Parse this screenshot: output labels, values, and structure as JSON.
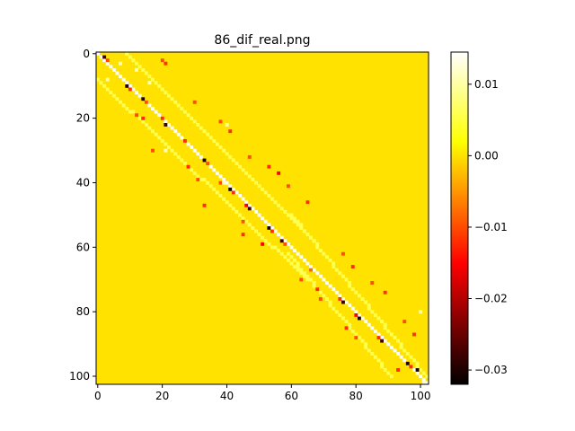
{
  "chart_data": {
    "type": "heatmap",
    "title": "86_dif_real.png",
    "xlabel": "",
    "ylabel": "",
    "size": 103,
    "xlim": [
      0,
      102
    ],
    "ylim": [
      102,
      0
    ],
    "x_ticks": [
      "0",
      "20",
      "40",
      "60",
      "80",
      "100"
    ],
    "y_ticks": [
      "0",
      "20",
      "40",
      "60",
      "80",
      "100"
    ],
    "colormap": "hot",
    "vmin": -0.032,
    "vmax": 0.0145,
    "background_value": 0.0,
    "colorbar_ticks": [
      {
        "value": 0.01,
        "label": "0.01"
      },
      {
        "value": 0.0,
        "label": "0.00"
      },
      {
        "value": -0.01,
        "label": "−0.01"
      },
      {
        "value": -0.02,
        "label": "−0.02"
      },
      {
        "value": -0.03,
        "label": "−0.03"
      }
    ],
    "bands": [
      {
        "name": "main-diagonal",
        "from": [
          0,
          0
        ],
        "to": [
          102,
          102
        ],
        "value": 0.0145
      },
      {
        "name": "upper-band-1",
        "from": [
          9,
          0
        ],
        "to": [
          67,
          58
        ],
        "value": 0.006
      },
      {
        "name": "upper-band-2",
        "from": [
          60,
          50
        ],
        "to": [
          102,
          100
        ],
        "value": 0.006
      },
      {
        "name": "lower-band-1",
        "from": [
          0,
          8
        ],
        "to": [
          65,
          70
        ],
        "value": 0.006
      },
      {
        "name": "lower-band-2",
        "from": [
          59,
          62
        ],
        "to": [
          91,
          100
        ],
        "value": 0.006
      }
    ],
    "cells": [
      [
        2,
        1,
        -0.028
      ],
      [
        3,
        2,
        -0.01
      ],
      [
        9,
        10,
        -0.03
      ],
      [
        10,
        11,
        -0.012
      ],
      [
        14,
        14,
        -0.03
      ],
      [
        15,
        15,
        -0.01
      ],
      [
        20,
        20,
        -0.012
      ],
      [
        21,
        22,
        -0.028
      ],
      [
        27,
        27,
        -0.012
      ],
      [
        33,
        33,
        -0.03
      ],
      [
        34,
        34,
        -0.01
      ],
      [
        38,
        40,
        -0.01
      ],
      [
        41,
        42,
        -0.032
      ],
      [
        42,
        43,
        -0.012
      ],
      [
        46,
        47,
        -0.015
      ],
      [
        47,
        48,
        -0.028
      ],
      [
        53,
        54,
        -0.03
      ],
      [
        54,
        55,
        -0.012
      ],
      [
        57,
        58,
        -0.028
      ],
      [
        58,
        59,
        -0.01
      ],
      [
        66,
        67,
        -0.008
      ],
      [
        75,
        76,
        -0.012
      ],
      [
        76,
        77,
        -0.028
      ],
      [
        80,
        81,
        -0.015
      ],
      [
        81,
        82,
        -0.03
      ],
      [
        87,
        88,
        -0.012
      ],
      [
        88,
        89,
        -0.028
      ],
      [
        96,
        96,
        -0.03
      ],
      [
        97,
        97,
        -0.012
      ],
      [
        99,
        98,
        -0.03
      ],
      [
        20,
        2,
        -0.01
      ],
      [
        21,
        3,
        -0.012
      ],
      [
        30,
        15,
        -0.01
      ],
      [
        38,
        21,
        -0.01
      ],
      [
        41,
        24,
        -0.012
      ],
      [
        47,
        32,
        -0.01
      ],
      [
        53,
        35,
        -0.012
      ],
      [
        56,
        37,
        -0.015
      ],
      [
        59,
        41,
        -0.01
      ],
      [
        65,
        46,
        -0.012
      ],
      [
        76,
        62,
        -0.01
      ],
      [
        79,
        66,
        -0.012
      ],
      [
        85,
        71,
        -0.01
      ],
      [
        89,
        74,
        -0.012
      ],
      [
        95,
        83,
        -0.01
      ],
      [
        98,
        87,
        -0.012
      ],
      [
        12,
        19,
        -0.01
      ],
      [
        14,
        20,
        -0.012
      ],
      [
        17,
        30,
        -0.01
      ],
      [
        28,
        35,
        -0.012
      ],
      [
        31,
        39,
        -0.01
      ],
      [
        33,
        47,
        -0.012
      ],
      [
        45,
        52,
        -0.01
      ],
      [
        45,
        56,
        -0.012
      ],
      [
        51,
        59,
        -0.015
      ],
      [
        63,
        70,
        -0.01
      ],
      [
        68,
        73,
        -0.012
      ],
      [
        69,
        76,
        -0.01
      ],
      [
        77,
        85,
        -0.012
      ],
      [
        80,
        88,
        -0.01
      ],
      [
        93,
        98,
        -0.012
      ],
      [
        7,
        3,
        0.012
      ],
      [
        12,
        5,
        0.01
      ],
      [
        16,
        9,
        0.012
      ],
      [
        40,
        22,
        0.01
      ],
      [
        100,
        80,
        0.01
      ],
      [
        101,
        102,
        0.012
      ],
      [
        3,
        8,
        0.01
      ],
      [
        21,
        30,
        0.012
      ],
      [
        39,
        40,
        0.012
      ]
    ]
  }
}
